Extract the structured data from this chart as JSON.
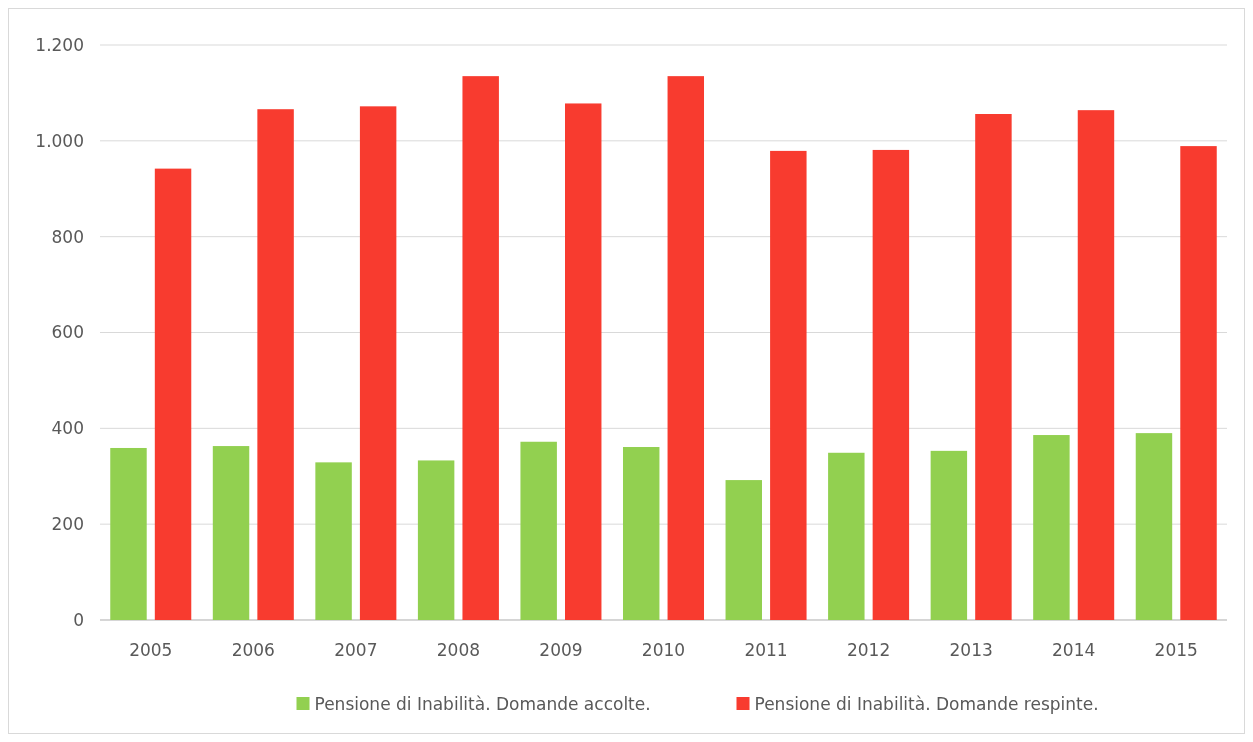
{
  "chart_data": {
    "type": "bar",
    "categories": [
      "2005",
      "2006",
      "2007",
      "2008",
      "2009",
      "2010",
      "2011",
      "2012",
      "2013",
      "2014",
      "2015"
    ],
    "series": [
      {
        "name": "Pensione di Inabilità. Domande accolte.",
        "color": "#92d050",
        "values": [
          359,
          363,
          329,
          333,
          372,
          361,
          292,
          349,
          353,
          386,
          390
        ]
      },
      {
        "name": "Pensione di Inabilità. Domande respinte.",
        "color": "#f83b2f",
        "values": [
          942,
          1066,
          1072,
          1135,
          1078,
          1135,
          979,
          981,
          1056,
          1064,
          989
        ]
      }
    ],
    "ylim": [
      0,
      1200
    ],
    "yticks": [
      0,
      200,
      400,
      600,
      800,
      {
        "value": 1000,
        "label": "1.000"
      },
      {
        "value": 1200,
        "label": "1.200"
      }
    ],
    "grid": "y",
    "legend": "bottom"
  }
}
